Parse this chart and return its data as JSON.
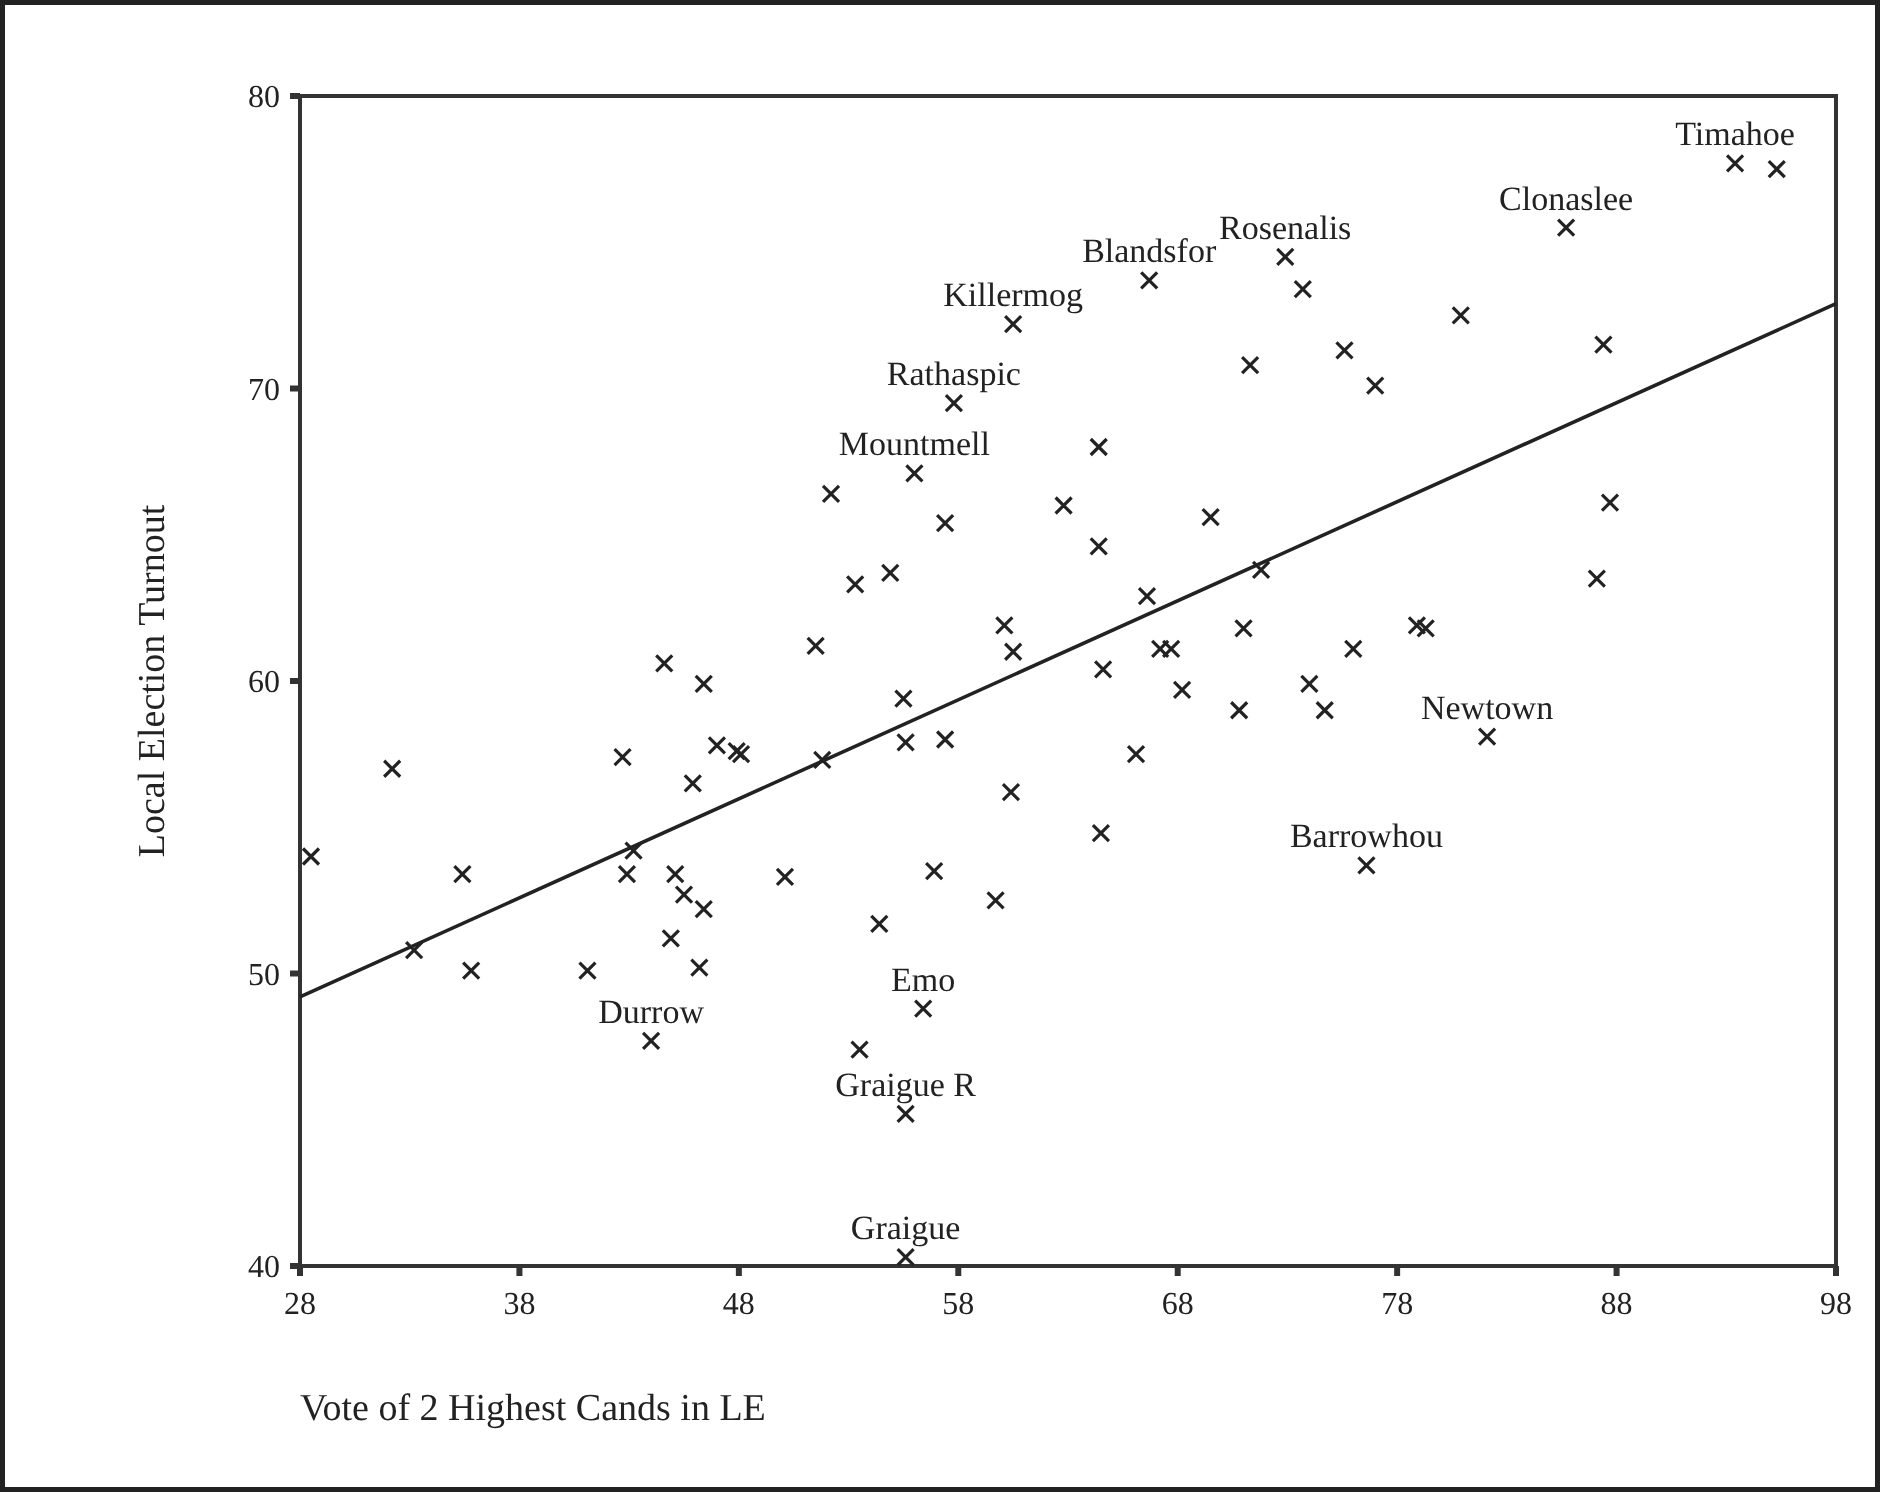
{
  "chart_data": {
    "type": "scatter",
    "xlabel": "Vote of 2 Highest Cands in LE",
    "ylabel": "Local Election Turnout",
    "xlim": [
      28,
      98
    ],
    "xticks": [
      28,
      38,
      48,
      58,
      68,
      78,
      88,
      98
    ],
    "ylim": [
      40,
      80
    ],
    "yticks": [
      40,
      50,
      60,
      70,
      80
    ],
    "grid": false,
    "series": [
      {
        "marker": "cross",
        "color": "#222222",
        "x": [
          28.5,
          32.2,
          33.2,
          35.4,
          35.8,
          41.1,
          42.7,
          42.9,
          43.2,
          44.0,
          44.6,
          44.9,
          45.1,
          45.5,
          45.9,
          46.4,
          46.4,
          46.2,
          47.0,
          47.9,
          48.1,
          50.1,
          51.5,
          51.8,
          52.2,
          53.3,
          53.5,
          54.4,
          54.9,
          55.5,
          55.6,
          55.6,
          55.6,
          56.0,
          56.4,
          56.9,
          57.4,
          57.4,
          57.8,
          59.7,
          60.1,
          60.4,
          60.5,
          60.5,
          62.8,
          64.4,
          64.4,
          64.5,
          64.6,
          66.1,
          66.6,
          66.7,
          67.2,
          67.7,
          68.2,
          69.5,
          70.8,
          71.0,
          71.3,
          71.8,
          72.9,
          73.7,
          74.0,
          74.7,
          75.6,
          76.0,
          76.6,
          77.0,
          78.9,
          79.3,
          80.9,
          82.1,
          85.7,
          87.1,
          87.4,
          87.7,
          93.4,
          95.3
        ],
        "values": [
          54.0,
          57.0,
          50.8,
          53.4,
          50.1,
          50.1,
          57.4,
          53.4,
          54.2,
          47.7,
          60.6,
          51.2,
          53.4,
          52.7,
          56.5,
          59.9,
          52.2,
          50.2,
          57.8,
          57.6,
          57.5,
          53.3,
          61.2,
          57.3,
          66.4,
          63.3,
          47.4,
          51.7,
          63.7,
          59.4,
          57.9,
          45.2,
          40.3,
          67.1,
          48.8,
          53.5,
          58.0,
          65.4,
          69.5,
          52.5,
          61.9,
          56.2,
          61.0,
          72.2,
          66.0,
          68.0,
          64.6,
          54.8,
          60.4,
          57.5,
          62.9,
          73.7,
          61.1,
          61.1,
          59.7,
          65.6,
          59.0,
          61.8,
          70.8,
          63.8,
          74.5,
          73.4,
          59.9,
          59.0,
          71.3,
          61.1,
          53.7,
          70.1,
          61.9,
          61.8,
          72.5,
          58.1,
          75.5,
          63.5,
          71.5,
          66.1,
          77.7,
          77.5
        ]
      },
      {
        "type": "line",
        "color": "#222222",
        "x": [
          28,
          98
        ],
        "values": [
          49.2,
          72.9
        ],
        "line_style": "solid"
      }
    ],
    "annotations": [
      {
        "text": "Timahoe",
        "x": 93.4,
        "y": 77.7
      },
      {
        "text": "Clonaslee",
        "x": 85.7,
        "y": 75.5
      },
      {
        "text": "Rosenalis",
        "x": 72.9,
        "y": 74.5
      },
      {
        "text": "Blandsfor",
        "x": 66.7,
        "y": 73.7
      },
      {
        "text": "Killermog",
        "x": 60.5,
        "y": 72.2
      },
      {
        "text": "Rathaspic",
        "x": 57.8,
        "y": 69.5
      },
      {
        "text": "Mountmell",
        "x": 56.0,
        "y": 67.1
      },
      {
        "text": "Newtown",
        "x": 82.1,
        "y": 58.1
      },
      {
        "text": "Barrowhou",
        "x": 76.6,
        "y": 53.7
      },
      {
        "text": "Durrow",
        "x": 44.0,
        "y": 47.7
      },
      {
        "text": "Emo",
        "x": 56.4,
        "y": 48.8
      },
      {
        "text": "Graigue R",
        "x": 55.6,
        "y": 45.2
      },
      {
        "text": "Graigue",
        "x": 55.6,
        "y": 40.3
      }
    ]
  }
}
